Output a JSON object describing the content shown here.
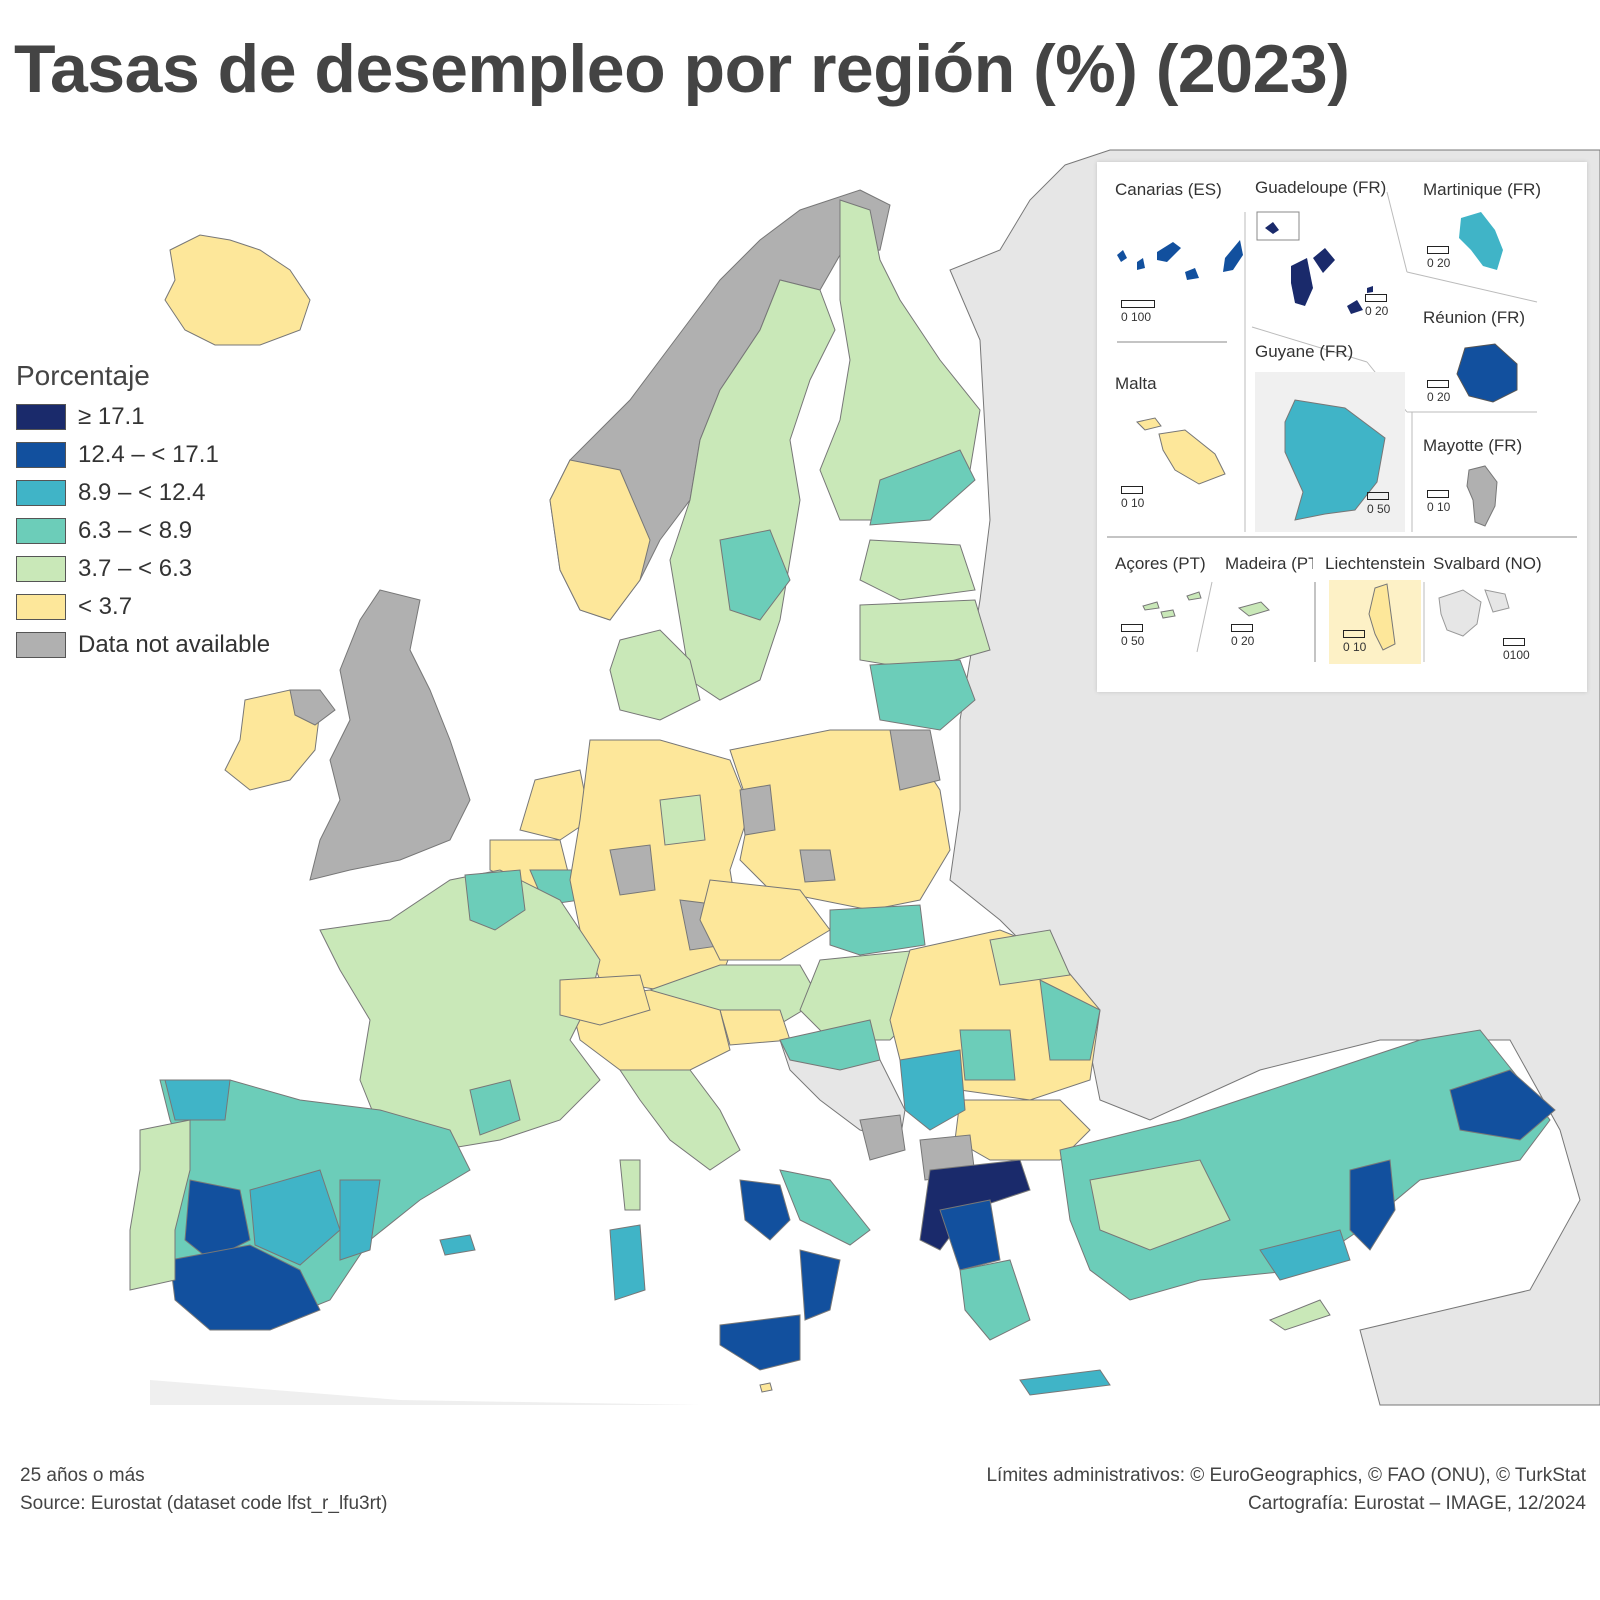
{
  "title": "Tasas de desempleo por región (%) (2023)",
  "legend": {
    "title": "Porcentaje",
    "items": [
      {
        "label": "≥ 17.1",
        "color": "#1a2a6b"
      },
      {
        "label": "12.4 – < 17.1",
        "color": "#12509e"
      },
      {
        "label": "8.9 – < 12.4",
        "color": "#40b4c7"
      },
      {
        "label": "6.3 – < 8.9",
        "color": "#6ccdb9"
      },
      {
        "label": "3.7 – < 6.3",
        "color": "#c9e8b8"
      },
      {
        "label": "< 3.7",
        "color": "#fde79a"
      },
      {
        "label": "Data not available",
        "color": "#b0b0b0"
      }
    ]
  },
  "insets": [
    {
      "name": "Canarias (ES)",
      "scale": "0   100"
    },
    {
      "name": "Guadeloupe (FR)",
      "scale": "0  20"
    },
    {
      "name": "Martinique (FR)",
      "scale": "0  20"
    },
    {
      "name": "Malta",
      "scale": "0   10"
    },
    {
      "name": "Guyane (FR)",
      "scale": "0 50"
    },
    {
      "name": "Réunion (FR)",
      "scale": "0  20"
    },
    {
      "name": "Mayotte (FR)",
      "scale": "0  10"
    },
    {
      "name": "Açores (PT)",
      "scale": "0   50"
    },
    {
      "name": "Madeira (PT)",
      "scale": "0  20"
    },
    {
      "name": "Liechtenstein",
      "scale": "0   10"
    },
    {
      "name": "Svalbard (NO)",
      "scale": "0100"
    }
  ],
  "footer": {
    "note": "25 años o más",
    "source": "Source: Eurostat (dataset code lfst_r_lfu3rt)",
    "boundaries": "Límites administrativos: © EuroGeographics, © FAO (ONU), © TurkStat",
    "cartography": "Cartografía: Eurostat – IMAGE, 12/2024"
  },
  "colors": {
    "background_land": "#e6e6e6",
    "sea": "#ffffff",
    "border": "#555555"
  }
}
